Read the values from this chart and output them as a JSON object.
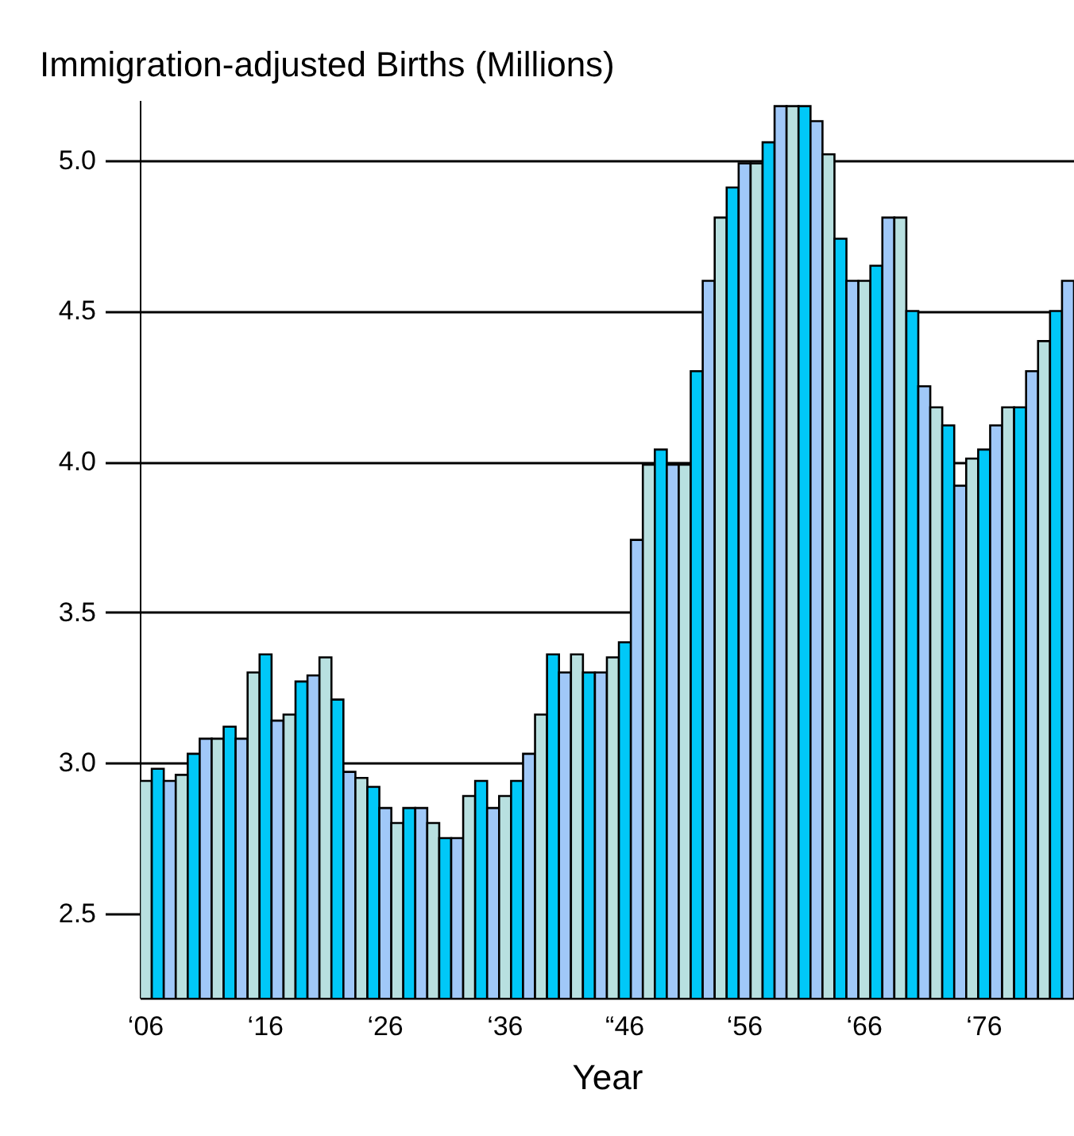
{
  "chart_data": {
    "type": "bar",
    "title": "Immigration-adjusted Births (Millions)",
    "xlabel": "Year",
    "categories": [
      "‘06",
      null,
      null,
      null,
      null,
      null,
      null,
      null,
      null,
      null,
      "‘16",
      null,
      null,
      null,
      null,
      null,
      null,
      null,
      null,
      null,
      "‘26",
      null,
      null,
      null,
      null,
      null,
      null,
      null,
      null,
      null,
      "‘36",
      null,
      null,
      null,
      null,
      null,
      null,
      null,
      null,
      null,
      "“46",
      null,
      null,
      null,
      null,
      null,
      null,
      null,
      null,
      null,
      "‘56",
      null,
      null,
      null,
      null,
      null,
      null,
      null,
      null,
      null,
      "‘66",
      null,
      null,
      null,
      null,
      null,
      null,
      null,
      null,
      null,
      "‘76",
      null,
      null,
      null,
      null,
      null,
      null,
      null
    ],
    "values": [
      2.94,
      2.98,
      2.94,
      2.96,
      3.03,
      3.08,
      3.08,
      3.12,
      3.08,
      3.3,
      3.36,
      3.14,
      3.16,
      3.27,
      3.29,
      3.35,
      3.21,
      2.97,
      2.95,
      2.92,
      2.85,
      2.8,
      2.85,
      2.85,
      2.8,
      2.75,
      2.75,
      2.89,
      2.94,
      2.85,
      2.89,
      2.94,
      3.03,
      3.16,
      3.36,
      3.3,
      3.36,
      3.3,
      3.3,
      3.35,
      3.4,
      3.74,
      3.99,
      4.04,
      3.99,
      3.99,
      4.3,
      4.6,
      4.81,
      4.91,
      4.99,
      4.99,
      5.06,
      5.18,
      5.18,
      5.18,
      5.13,
      5.02,
      4.74,
      4.6,
      4.6,
      4.65,
      4.81,
      4.81,
      4.5,
      4.25,
      4.18,
      4.12,
      3.92,
      4.01,
      4.04,
      4.12,
      4.18,
      4.18,
      4.3,
      4.4,
      4.5,
      4.6
    ],
    "colors": [
      "#b8e0e0",
      "#00c8f8",
      "#a0c8f8",
      "#b8e0e0",
      "#00c8f8",
      "#a0c8f8",
      "#b8e0e0",
      "#00c8f8",
      "#a0c8f8",
      "#b8e0e0",
      "#00c8f8",
      "#a0c8f8",
      "#b8e0e0",
      "#00c8f8",
      "#a0c8f8",
      "#b8e0e0",
      "#00c8f8",
      "#a0c8f8",
      "#b8e0e0",
      "#00c8f8",
      "#a0c8f8",
      "#b8e0e0",
      "#00c8f8",
      "#a0c8f8",
      "#b8e0e0",
      "#00c8f8",
      "#a0c8f8",
      "#b8e0e0",
      "#00c8f8",
      "#a0c8f8",
      "#b8e0e0",
      "#00c8f8",
      "#a0c8f8",
      "#b8e0e0",
      "#00c8f8",
      "#a0c8f8",
      "#b8e0e0",
      "#00c8f8",
      "#a0c8f8",
      "#b8e0e0",
      "#00c8f8",
      "#a0c8f8",
      "#b8e0e0",
      "#00c8f8",
      "#a0c8f8",
      "#b8e0e0",
      "#00c8f8",
      "#a0c8f8",
      "#b8e0e0",
      "#00c8f8",
      "#a0c8f8",
      "#b8e0e0",
      "#00c8f8",
      "#a0c8f8",
      "#b8e0e0",
      "#00c8f8",
      "#a0c8f8",
      "#b8e0e0",
      "#00c8f8",
      "#a0c8f8",
      "#b8e0e0",
      "#00c8f8",
      "#a0c8f8",
      "#b8e0e0",
      "#00c8f8",
      "#a0c8f8",
      "#b8e0e0",
      "#00c8f8",
      "#a0c8f8",
      "#b8e0e0",
      "#00c8f8",
      "#a0c8f8",
      "#b8e0e0",
      "#00c8f8",
      "#a0c8f8",
      "#b8e0e0",
      "#00c8f8",
      "#a0c8f8"
    ],
    "ylim": [
      2.22,
      5.2
    ],
    "yticks": [
      2.5,
      {
        "value": 3,
        "label": "3.0"
      },
      3.5,
      {
        "value": 4,
        "label": "4.0"
      },
      4.5,
      {
        "value": 5,
        "label": "5.0"
      }
    ],
    "grid": true
  }
}
